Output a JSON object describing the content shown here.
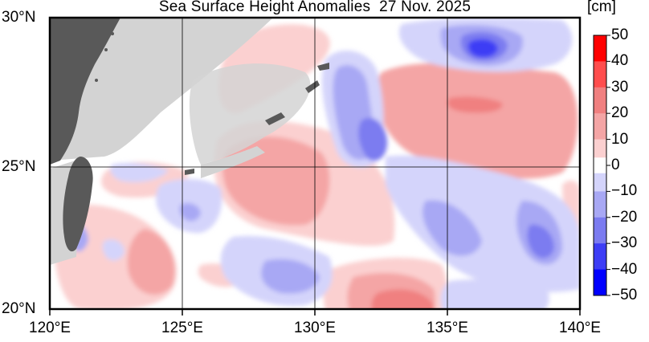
{
  "title": "Sea Surface Height Anomalies  27 Nov. 2025",
  "map": {
    "lon_range": [
      120,
      140
    ],
    "lat_range": [
      20,
      30
    ],
    "lon_ticks": [
      "120°E",
      "125°E",
      "130°E",
      "135°E",
      "140°E"
    ],
    "lat_ticks": [
      "30°N",
      "25°N",
      "20°N"
    ],
    "colors": {
      "land": "#595959",
      "coast_grey": "#d3d3d3",
      "frame": "#000000"
    }
  },
  "colorbar": {
    "unit": "[cm]",
    "labels": [
      "50",
      "40",
      "30",
      "20",
      "10",
      "0",
      "−10",
      "−20",
      "−30",
      "−40",
      "−50"
    ],
    "range": [
      -50,
      50
    ],
    "colors": [
      "#ff0000",
      "#ff4d4d",
      "#f08080",
      "#f4a5a5",
      "#fbd0d0",
      "#ffffff",
      "#d4d4fb",
      "#a8a8f4",
      "#7b7bf0",
      "#3d3df5",
      "#0000ff"
    ]
  }
}
